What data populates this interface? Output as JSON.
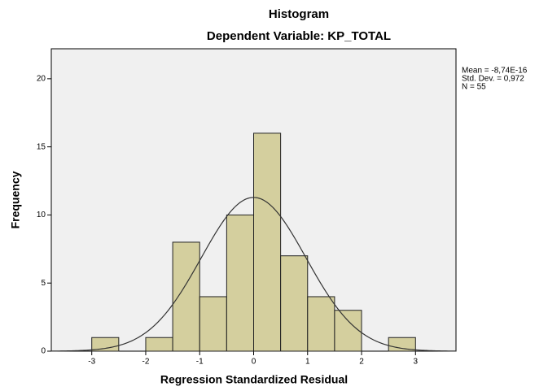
{
  "chart_data": {
    "type": "histogram",
    "title": "Histogram",
    "subtitle": "Dependent Variable: KP_TOTAL",
    "x_label": "Regression Standardized Residual",
    "y_label": "Frequency",
    "bins": [
      -3,
      -2.5,
      -2,
      -1.5,
      -1,
      -0.5,
      0,
      0.5,
      1,
      1.5,
      2,
      2.5,
      3
    ],
    "counts": [
      1,
      0,
      1,
      8,
      4,
      10,
      16,
      7,
      4,
      3,
      0,
      1
    ],
    "color": "#cfc98f",
    "xlim": [
      -3.75,
      3.75
    ],
    "xticks": [
      -3,
      -2,
      -1,
      0,
      1,
      2,
      3
    ],
    "ylim": [
      0,
      22.2
    ],
    "yticks": [
      0,
      5,
      10,
      15,
      20
    ],
    "normal_curve": {
      "mean": -8.74e-16,
      "std_dev": 0.972,
      "n": 55
    },
    "stats_labels": [
      "Mean = -8,74E-16",
      "Std. Dev. = 0,972",
      "N = 55"
    ]
  }
}
